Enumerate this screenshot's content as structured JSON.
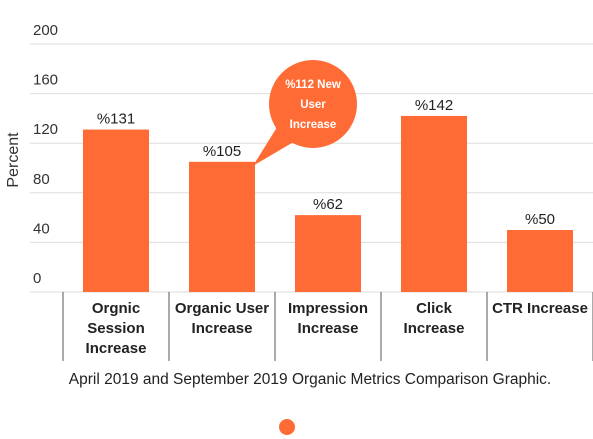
{
  "chart_data": {
    "type": "bar",
    "categories": [
      [
        "Orgnic",
        "Session",
        "Increase"
      ],
      [
        "Organic User",
        "Increase"
      ],
      [
        "Impression",
        "Increase"
      ],
      [
        "Click",
        "Increase"
      ],
      [
        "CTR Increase"
      ]
    ],
    "values": [
      131,
      105,
      62,
      142,
      50
    ],
    "data_labels": [
      "%131",
      "%105",
      "%62",
      "%142",
      "%50"
    ],
    "ylabel": "Percent",
    "ylim": [
      0,
      200
    ],
    "yticks": [
      "0",
      "40",
      "80",
      "120",
      "160",
      "200"
    ],
    "grid": true,
    "legend": "bottom",
    "bar_color": "#ff6b35",
    "annotation": {
      "lines": [
        "%112 New",
        "User",
        "Increase"
      ],
      "target_category_index": 1,
      "color": "#ff6b35"
    },
    "caption": "April 2019 and September 2019 Organic Metrics Comparison Graphic."
  }
}
